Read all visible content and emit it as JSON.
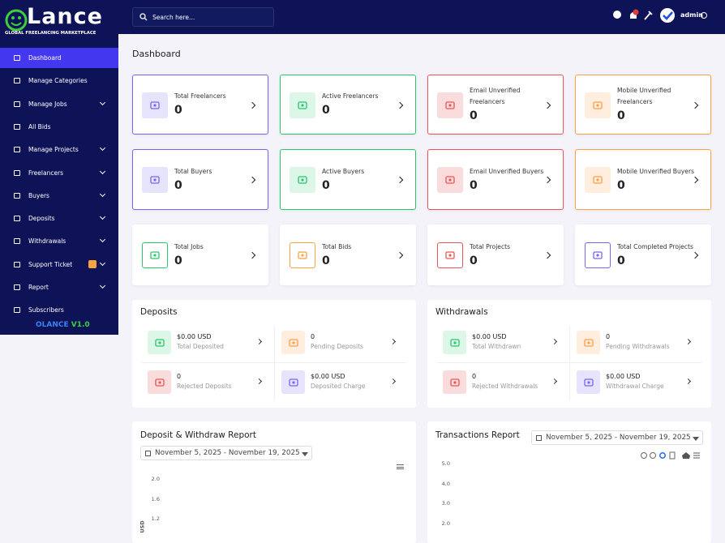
{
  "sidebar": {
    "brand": "Lance",
    "tagline": "GLOBAL FREELANCING MARKETPLACE",
    "menu": [
      "Dashboard",
      "Manage Categories",
      "Manage Jobs",
      "All Bids",
      "Manage Projects",
      "Freelancers",
      "Buyers",
      "Deposits",
      "Withdrawals",
      "Support Ticket",
      "Report",
      "Subscribers"
    ],
    "footer": {
      "name": "OLANCE",
      "version": "V1.0"
    }
  },
  "topbar": {
    "search_placeholder": "Search here...",
    "user": "admin"
  },
  "page_title": "Dashboard",
  "cards": [
    {
      "title": "Total Freelancers",
      "value": 0
    },
    {
      "title": "Active Freelancers",
      "value": 0
    },
    {
      "title": "Email Unverified Freelancers",
      "value": 0
    },
    {
      "title": "Mobile Unverified Freelancers",
      "value": 0
    },
    {
      "title": "Total Buyers",
      "value": 0
    },
    {
      "title": "Active Buyers",
      "value": 0
    },
    {
      "title": "Email Unverified Buyers",
      "value": 0
    },
    {
      "title": "Mobile Unverified Buyers",
      "value": 0
    },
    {
      "title": "Total Jobs",
      "value": 0
    },
    {
      "title": "Total Bids",
      "value": 0
    },
    {
      "title": "Total Projects",
      "value": 0
    },
    {
      "title": "Total Completed Projects",
      "value": 0
    }
  ],
  "deposits": {
    "title": "Deposits",
    "items": [
      {
        "value": "$0.00 USD",
        "label": "Total Deposited"
      },
      {
        "value": "0",
        "label": "Pending Deposits"
      },
      {
        "value": "0",
        "label": "Rejected Deposits"
      },
      {
        "value": "$0.00 USD",
        "label": "Deposited Charge"
      }
    ]
  },
  "withdrawals": {
    "title": "Withdrawals",
    "items": [
      {
        "value": "$0.00 USD",
        "label": "Total Withdrawn"
      },
      {
        "value": "0",
        "label": "Pending Withdrawals"
      },
      {
        "value": "0",
        "label": "Rejected Withdrawals"
      },
      {
        "value": "$0.00 USD",
        "label": "Withdrawal Charge"
      }
    ]
  },
  "reports": [
    {
      "title": "Deposit & Withdraw Report",
      "date_range": "November 5, 2025 - November 19, 2025",
      "yticks": [
        "2.0",
        "1.6",
        "1.2"
      ],
      "y_label": "USD"
    },
    {
      "title": "Transactions Report",
      "date_range": "November 5, 2025 - November 19, 2025",
      "yticks": [
        "5.0",
        "4.0",
        "3.0",
        "2.0"
      ]
    }
  ]
}
